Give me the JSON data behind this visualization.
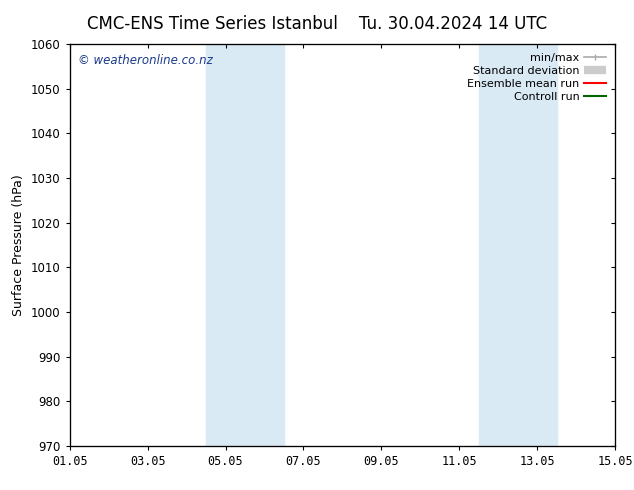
{
  "title_left": "CMC-ENS Time Series Istanbul",
  "title_right": "Tu. 30.04.2024 14 UTC",
  "ylabel": "Surface Pressure (hPa)",
  "ylim": [
    970,
    1060
  ],
  "yticks": [
    970,
    980,
    990,
    1000,
    1010,
    1020,
    1030,
    1040,
    1050,
    1060
  ],
  "xtick_labels": [
    "01.05",
    "03.05",
    "05.05",
    "07.05",
    "09.05",
    "11.05",
    "13.05",
    "15.05"
  ],
  "xtick_positions": [
    0,
    2,
    4,
    6,
    8,
    10,
    12,
    14
  ],
  "xlim": [
    0,
    14
  ],
  "shaded_bands": [
    {
      "x_start": 3.5,
      "x_end": 5.5
    },
    {
      "x_start": 10.5,
      "x_end": 12.5
    }
  ],
  "shaded_color": "#daeaf5",
  "watermark_text": "© weatheronline.co.nz",
  "watermark_color": "#1a3a8c",
  "bg_color": "#ffffff",
  "plot_bg_color": "#ffffff",
  "grid_color": "#bbbbbb",
  "legend_items": [
    {
      "label": "min/max",
      "color": "#aaaaaa",
      "lw": 1.2
    },
    {
      "label": "Standard deviation",
      "color": "#cccccc",
      "lw": 6
    },
    {
      "label": "Ensemble mean run",
      "color": "#ff0000",
      "lw": 1.5
    },
    {
      "label": "Controll run",
      "color": "#006400",
      "lw": 1.5
    }
  ],
  "title_fontsize": 12,
  "label_fontsize": 9,
  "tick_fontsize": 8.5,
  "legend_fontsize": 8,
  "watermark_fontsize": 8.5
}
